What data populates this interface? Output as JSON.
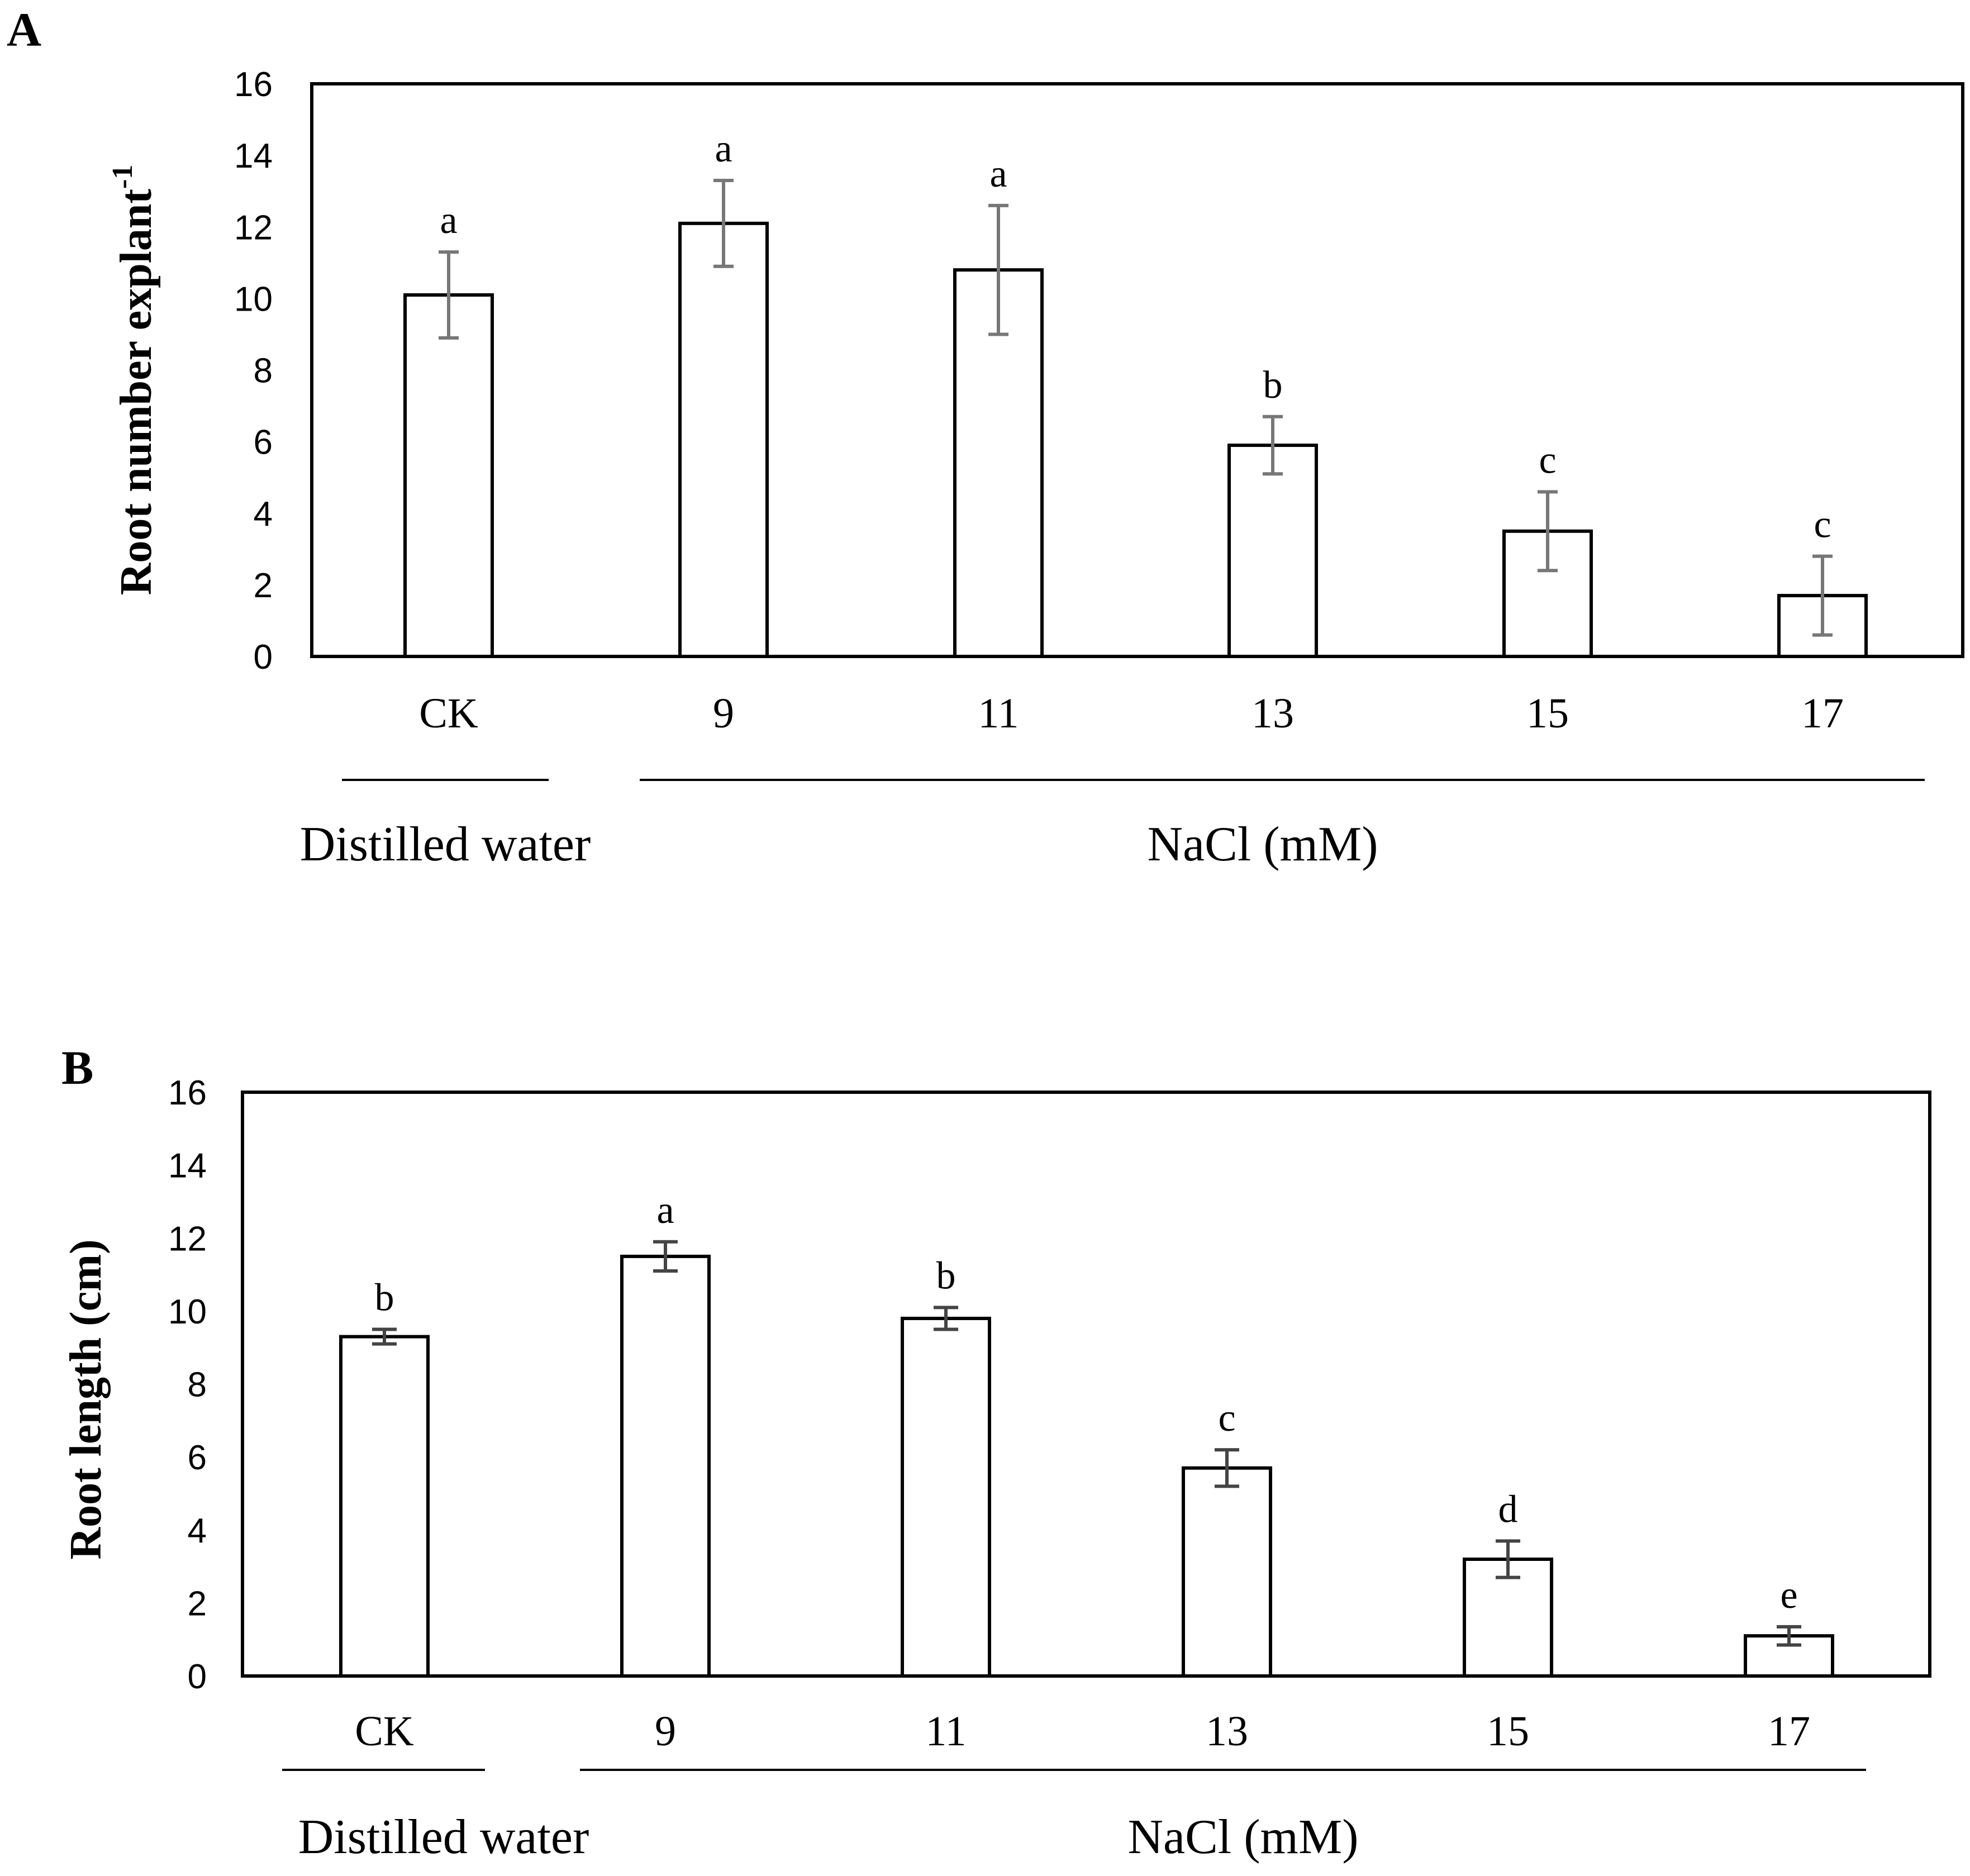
{
  "chart_data": [
    {
      "type": "bar",
      "panel": "A",
      "ylabel": "Root number explant",
      "ylabel_superscript": "-1",
      "ylim": [
        0,
        16
      ],
      "yticks": [
        "0",
        "2",
        "4",
        "6",
        "8",
        "10",
        "12",
        "14",
        "16"
      ],
      "categories": [
        "CK",
        "9",
        "11",
        "13",
        "15",
        "17"
      ],
      "values": [
        10.1,
        12.1,
        10.8,
        5.9,
        3.5,
        1.7
      ],
      "errors": [
        1.2,
        1.2,
        1.8,
        0.8,
        1.1,
        1.1
      ],
      "significance": [
        "a",
        "a",
        "a",
        "b",
        "c",
        "c"
      ],
      "groups": [
        {
          "label": "Distilled water",
          "categories": [
            "CK"
          ]
        },
        {
          "label": "NaCl (mM)",
          "categories": [
            "9",
            "11",
            "13",
            "15",
            "17"
          ]
        }
      ],
      "grid": false
    },
    {
      "type": "bar",
      "panel": "B",
      "ylabel": "Root length (cm)",
      "ylim": [
        0,
        16
      ],
      "yticks": [
        "0",
        "2",
        "4",
        "6",
        "8",
        "10",
        "12",
        "14",
        "16"
      ],
      "categories": [
        "CK",
        "9",
        "11",
        "13",
        "15",
        "17"
      ],
      "values": [
        9.3,
        11.5,
        9.8,
        5.7,
        3.2,
        1.1
      ],
      "errors": [
        0.2,
        0.4,
        0.3,
        0.5,
        0.5,
        0.25
      ],
      "significance": [
        "b",
        "a",
        "b",
        "c",
        "d",
        "e"
      ],
      "groups": [
        {
          "label": "Distilled water",
          "categories": [
            "CK"
          ]
        },
        {
          "label": "NaCl (mM)",
          "categories": [
            "9",
            "11",
            "13",
            "15",
            "17"
          ]
        }
      ],
      "grid": false
    }
  ],
  "style": {
    "bar_fill": "#ffffff",
    "bar_stroke": "#000000",
    "axis_color": "#000000",
    "errorbar_color_A": "#777777",
    "errorbar_color_B": "#444444",
    "text_color": "#000000"
  }
}
